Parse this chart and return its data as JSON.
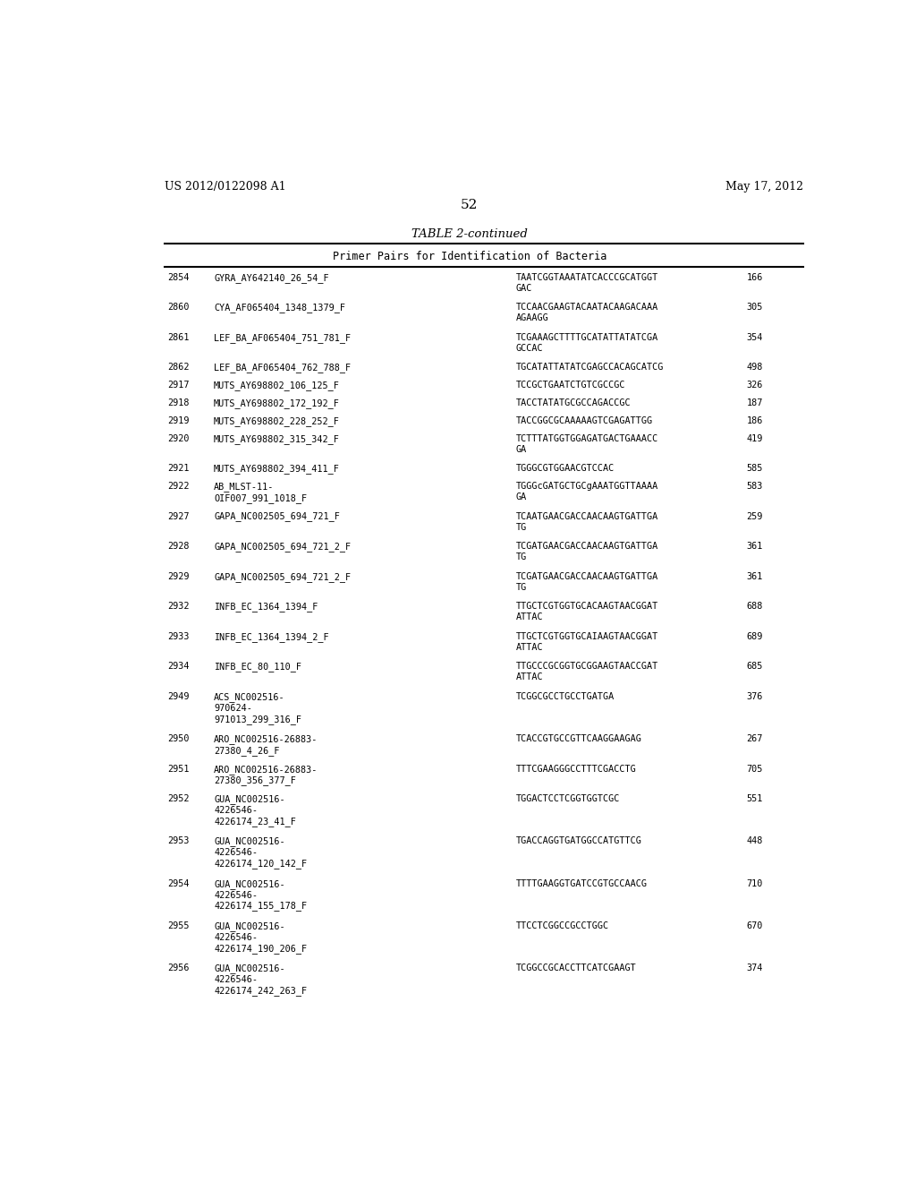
{
  "header_left": "US 2012/0122098 A1",
  "header_right": "May 17, 2012",
  "page_number": "52",
  "table_title": "TABLE 2-continued",
  "table_subtitle": "Primer Pairs for Identification of Bacteria",
  "background_color": "#ffffff",
  "rows": [
    {
      "num": "2854",
      "name": "GYRA_AY642140_26_54_F",
      "sequence": "TAATCGGTAAATATCACCCGCATGGT\nGAC",
      "value": "166"
    },
    {
      "num": "2860",
      "name": "CYA_AF065404_1348_1379_F",
      "sequence": "TCCAACGAAGTACAATACAAGACAAA\nAGAAGG",
      "value": "305"
    },
    {
      "num": "2861",
      "name": "LEF_BA_AF065404_751_781_F",
      "sequence": "TCGAAAGCTTTTGCATATTATATCGA\nGCCAC",
      "value": "354"
    },
    {
      "num": "2862",
      "name": "LEF_BA_AF065404_762_788_F",
      "sequence": "TGCATATTATATCGAGCCACAGCATCG",
      "value": "498"
    },
    {
      "num": "2917",
      "name": "MUTS_AY698802_106_125_F",
      "sequence": "TCCGCTGAATCTGTCGCCGC",
      "value": "326"
    },
    {
      "num": "2918",
      "name": "MUTS_AY698802_172_192_F",
      "sequence": "TACCTATATGCGCCAGACCGC",
      "value": "187"
    },
    {
      "num": "2919",
      "name": "MUTS_AY698802_228_252_F",
      "sequence": "TACCGGCGCAAAAAGTCGAGATTGG",
      "value": "186"
    },
    {
      "num": "2920",
      "name": "MUTS_AY698802_315_342_F",
      "sequence": "TCTTTATGGTGGAGATGACTGAAACC\nGA",
      "value": "419"
    },
    {
      "num": "2921",
      "name": "MUTS_AY698802_394_411_F",
      "sequence": "TGGGCGTGGAACGTCCAC",
      "value": "585"
    },
    {
      "num": "2922",
      "name": "AB_MLST-11-\nOIF007_991_1018_F",
      "sequence": "TGGGcGATGCTGCgAAATGGTTAAAA\nGA",
      "value": "583"
    },
    {
      "num": "2927",
      "name": "GAPA_NC002505_694_721_F",
      "sequence": "TCAATGAACGACCAACAAGTGATTGA\nTG",
      "value": "259"
    },
    {
      "num": "2928",
      "name": "GAPA_NC002505_694_721_2_F",
      "sequence": "TCGATGAACGACCAACAAGTGATTGA\nTG",
      "value": "361"
    },
    {
      "num": "2929",
      "name": "GAPA_NC002505_694_721_2_F",
      "sequence": "TCGATGAACGACCAACAAGTGATTGA\nTG",
      "value": "361"
    },
    {
      "num": "2932",
      "name": "INFB_EC_1364_1394_F",
      "sequence": "TTGCTCGTGGTGCACAAGTAACGGAT\nATTAC",
      "value": "688"
    },
    {
      "num": "2933",
      "name": "INFB_EC_1364_1394_2_F",
      "sequence": "TTGCTCGTGGTGCAIAAGTAACGGAT\nATTAC",
      "value": "689"
    },
    {
      "num": "2934",
      "name": "INFB_EC_80_110_F",
      "sequence": "TTGCCCGCGGTGCGGAAGTAACCGAT\nATTAC",
      "value": "685"
    },
    {
      "num": "2949",
      "name": "ACS_NC002516-\n970624-\n971013_299_316_F",
      "sequence": "TCGGCGCCTGCCTGATGA",
      "value": "376"
    },
    {
      "num": "2950",
      "name": "ARO_NC002516-26883-\n27380_4_26_F",
      "sequence": "TCACCGTGCCGTTCAAGGAAGAG",
      "value": "267"
    },
    {
      "num": "2951",
      "name": "ARO_NC002516-26883-\n27380_356_377_F",
      "sequence": "TTTCGAAGGGCCTTTCGACCTG",
      "value": "705"
    },
    {
      "num": "2952",
      "name": "GUA_NC002516-\n4226546-\n4226174_23_41_F",
      "sequence": "TGGACTCCTCGGTGGTCGC",
      "value": "551"
    },
    {
      "num": "2953",
      "name": "GUA_NC002516-\n4226546-\n4226174_120_142_F",
      "sequence": "TGACCAGGTGATGGCCATGTTCG",
      "value": "448"
    },
    {
      "num": "2954",
      "name": "GUA_NC002516-\n4226546-\n4226174_155_178_F",
      "sequence": "TTTTGAAGGTGATCCGTGCCAACG",
      "value": "710"
    },
    {
      "num": "2955",
      "name": "GUA_NC002516-\n4226546-\n4226174_190_206_F",
      "sequence": "TTCCTCGGCCGCCTGGC",
      "value": "670"
    },
    {
      "num": "2956",
      "name": "GUA_NC002516-\n4226546-\n4226174_242_263_F",
      "sequence": "TCGGCCGCACCTTCATCGAAGT",
      "value": "374"
    }
  ]
}
